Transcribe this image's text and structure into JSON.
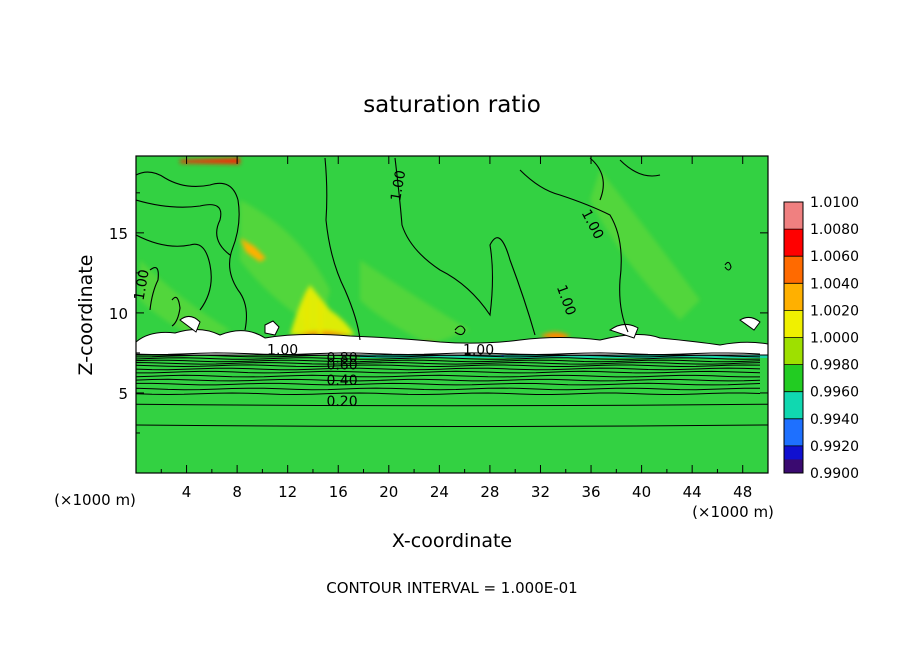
{
  "chart_data": {
    "type": "heatmap",
    "title": "saturation ratio",
    "xlabel": "X-coordinate",
    "ylabel": "Z-coordinate",
    "x_unit_left": "(×1000 m)",
    "x_unit_right": "(×1000 m)",
    "xlim": [
      0,
      50
    ],
    "ylim": [
      0,
      19.8
    ],
    "x_ticks": [
      "4",
      "8",
      "12",
      "16",
      "20",
      "24",
      "28",
      "32",
      "36",
      "40",
      "44",
      "48"
    ],
    "x_tick_values": [
      4,
      8,
      12,
      16,
      20,
      24,
      28,
      32,
      36,
      40,
      44,
      48
    ],
    "y_ticks": [
      "5",
      "10",
      "15"
    ],
    "y_tick_values": [
      5,
      10,
      15
    ],
    "footer": "CONTOUR INTERVAL = 1.000E-01",
    "colorbar": {
      "labels": [
        "1.0100",
        "1.0080",
        "1.0060",
        "1.0040",
        "1.0020",
        "1.0000",
        "0.9980",
        "0.9960",
        "0.9940",
        "0.9920",
        "0.9900"
      ],
      "values": [
        1.01,
        1.008,
        1.006,
        1.004,
        1.002,
        1.0,
        0.998,
        0.996,
        0.994,
        0.992,
        0.99
      ],
      "colors": [
        "#f08080",
        "#ff0000",
        "#ff6a00",
        "#ffb000",
        "#f0f000",
        "#9ee000",
        "#22cc22",
        "#10d8b0",
        "#1e70ff",
        "#1010d0",
        "#3a0a70"
      ]
    },
    "field_color": "#33d142",
    "contour_labels": [
      {
        "text": "1.00",
        "x": 21.1,
        "z": 17.9,
        "rot": -80
      },
      {
        "text": "1.00",
        "x": 35.8,
        "z": 15.4,
        "rot": 62
      },
      {
        "text": "1.00",
        "x": 33.7,
        "z": 10.7,
        "rot": 70
      },
      {
        "text": "1.00",
        "x": 0.8,
        "z": 11.7,
        "rot": -80
      },
      {
        "text": "1.00",
        "x": 11.6,
        "z": 7.4,
        "rot": 0
      },
      {
        "text": "1.00",
        "x": 27.1,
        "z": 7.4,
        "rot": 0
      },
      {
        "text": "0.80",
        "x": 16.3,
        "z": 6.9,
        "rot": 0
      },
      {
        "text": "0.60",
        "x": 16.3,
        "z": 6.45,
        "rot": 0
      },
      {
        "text": "0.40",
        "x": 16.3,
        "z": 5.5,
        "rot": 0
      },
      {
        "text": "0.20",
        "x": 16.3,
        "z": 4.2,
        "rot": 0
      }
    ],
    "flat_contour_levels": [
      {
        "level": "0.20",
        "z": 4.3
      },
      {
        "level": "0.10",
        "z": 3.0
      }
    ]
  }
}
